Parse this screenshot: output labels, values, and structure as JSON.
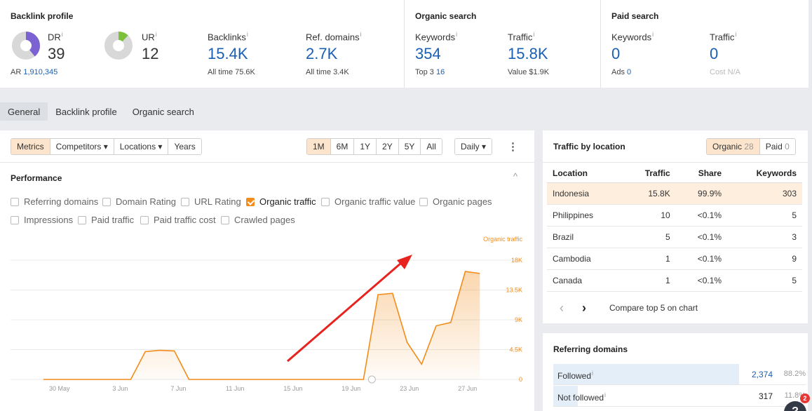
{
  "top": {
    "backlink_profile": {
      "title": "Backlink profile",
      "dr": {
        "label": "DR",
        "value": "39",
        "fill": 0.39
      },
      "ur": {
        "label": "UR",
        "value": "12",
        "fill": 0.12
      },
      "ar_label": "AR",
      "ar_value": "1,910,345",
      "backlinks": {
        "label": "Backlinks",
        "value": "15.4K",
        "sub": "All time 75.6K"
      },
      "ref_domains": {
        "label": "Ref. domains",
        "value": "2.7K",
        "sub": "All time 3.4K"
      }
    },
    "organic_search": {
      "title": "Organic search",
      "keywords": {
        "label": "Keywords",
        "value": "354",
        "sub_label": "Top 3",
        "sub_value": "16"
      },
      "traffic": {
        "label": "Traffic",
        "value": "15.8K",
        "sub": "Value $1.9K"
      }
    },
    "paid_search": {
      "title": "Paid search",
      "keywords": {
        "label": "Keywords",
        "value": "0",
        "sub_label": "Ads",
        "sub_value": "0"
      },
      "traffic": {
        "label": "Traffic",
        "value": "0",
        "sub": "Cost N/A"
      }
    },
    "info_icon": "i"
  },
  "tabs": [
    "General",
    "Backlink profile",
    "Organic search"
  ],
  "toolbar": {
    "metrics": "Metrics",
    "competitors": "Competitors ▾",
    "locations": "Locations ▾",
    "years": "Years",
    "ranges": [
      "1M",
      "6M",
      "1Y",
      "2Y",
      "5Y",
      "All"
    ],
    "interval": "Daily ▾",
    "more_icon": "⋮"
  },
  "performance": {
    "title": "Performance",
    "collapse_icon": "^",
    "checkboxes": [
      {
        "label": "Referring domains",
        "checked": false
      },
      {
        "label": "Domain Rating",
        "checked": false
      },
      {
        "label": "URL Rating",
        "checked": false
      },
      {
        "label": "Organic traffic",
        "checked": true
      },
      {
        "label": "Organic traffic value",
        "checked": false
      },
      {
        "label": "Organic pages",
        "checked": false
      },
      {
        "label": "Impressions",
        "checked": false
      },
      {
        "label": "Paid traffic",
        "checked": false
      },
      {
        "label": "Paid traffic cost",
        "checked": false
      },
      {
        "label": "Crawled pages",
        "checked": false
      }
    ]
  },
  "chart_data": {
    "type": "area",
    "series": [
      {
        "name": "Organic traffic",
        "color": "#f28c1a"
      }
    ],
    "x_ticks": [
      "30 May",
      "3 Jun",
      "7 Jun",
      "11 Jun",
      "15 Jun",
      "19 Jun",
      "23 Jun",
      "27 Jun"
    ],
    "y_ticks": [
      "18K",
      "13.5K",
      "9K",
      "4.5K",
      "0"
    ],
    "ylim": [
      0,
      18000
    ],
    "x": [
      "28 May",
      "29 May",
      "30 May",
      "31 May",
      "1 Jun",
      "2 Jun",
      "3 Jun",
      "4 Jun",
      "5 Jun",
      "6 Jun",
      "7 Jun",
      "8 Jun",
      "9 Jun",
      "10 Jun",
      "11 Jun",
      "12 Jun",
      "13 Jun",
      "14 Jun",
      "15 Jun",
      "16 Jun",
      "17 Jun",
      "18 Jun",
      "19 Jun",
      "20 Jun",
      "21 Jun",
      "22 Jun",
      "23 Jun",
      "24 Jun",
      "25 Jun",
      "26 Jun",
      "27 Jun",
      "28 Jun"
    ],
    "values": [
      0,
      0,
      0,
      0,
      0,
      0,
      0,
      4200,
      4400,
      4300,
      0,
      0,
      0,
      0,
      0,
      0,
      0,
      0,
      0,
      0,
      0,
      0,
      0,
      12800,
      13000,
      5600,
      2300,
      8100,
      8600,
      16300,
      16000,
      null
    ],
    "grid": true,
    "legend": "top-right"
  },
  "traffic_by_location": {
    "title": "Traffic by location",
    "toggle": {
      "organic_label": "Organic",
      "organic_count": "28",
      "paid_label": "Paid",
      "paid_count": "0"
    },
    "columns": [
      "Location",
      "Traffic",
      "Share",
      "Keywords"
    ],
    "rows": [
      {
        "location": "Indonesia",
        "traffic": "15.8K",
        "share": "99.9%",
        "keywords": "303",
        "highlight": true
      },
      {
        "location": "Philippines",
        "traffic": "10",
        "share": "<0.1%",
        "keywords": "5"
      },
      {
        "location": "Brazil",
        "traffic": "5",
        "share": "<0.1%",
        "keywords": "3"
      },
      {
        "location": "Cambodia",
        "traffic": "1",
        "share": "<0.1%",
        "keywords": "9"
      },
      {
        "location": "Canada",
        "traffic": "1",
        "share": "<0.1%",
        "keywords": "5"
      }
    ],
    "prev_icon": "‹",
    "next_icon": "›",
    "compare_label": "Compare top 5 on chart"
  },
  "referring_domains": {
    "title": "Referring domains",
    "rows": [
      {
        "label": "Followed",
        "value": "2,374",
        "pct": "88.2%",
        "fraction": 0.882
      },
      {
        "label": "Not followed",
        "value": "317",
        "pct": "11.8%",
        "fraction": 0.118
      }
    ]
  },
  "help": {
    "badge": "2",
    "icon": "?"
  }
}
